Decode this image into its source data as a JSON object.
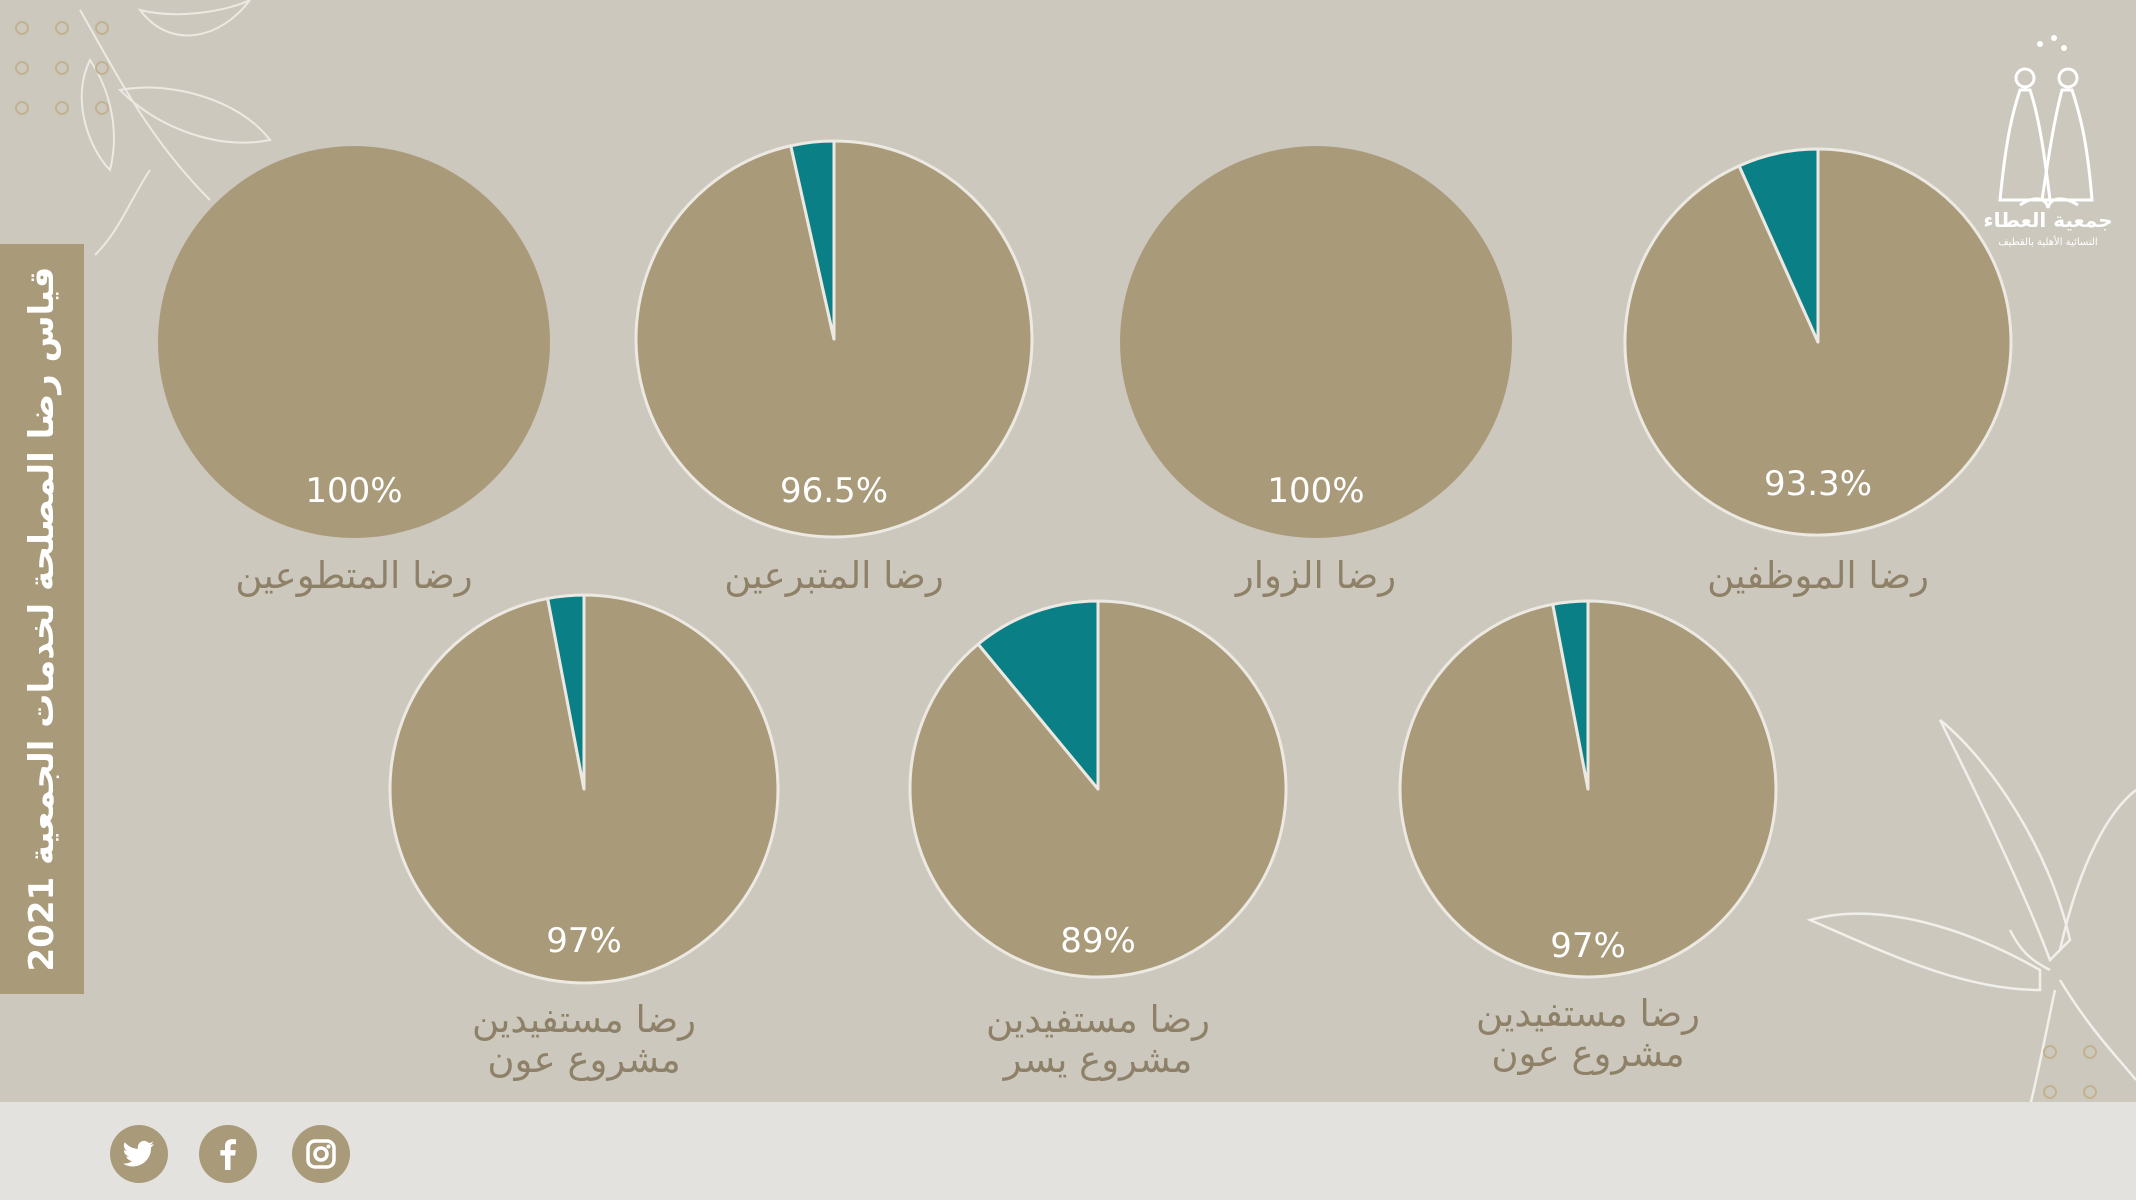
{
  "side_title": "قياس رضا المصلحة لخدمات الجمعية 2021",
  "logo": {
    "name": "جمعية العطاء",
    "tagline": "النسائية الأهلية بالقطيف"
  },
  "colors": {
    "background": "#cdc8be",
    "main_slice": "#a99a7a",
    "minor_slice": "#0b7f86",
    "label": "#8e8167",
    "footer": "#e3e2df"
  },
  "social": [
    "twitter-icon",
    "facebook-icon",
    "instagram-icon"
  ],
  "chart_data": [
    {
      "type": "pie",
      "label": [
        "رضا الموظفين"
      ],
      "satisfied": 93.3,
      "value_label": "93.3%"
    },
    {
      "type": "pie",
      "label": [
        "رضا الزوار"
      ],
      "satisfied": 100,
      "value_label": "100%"
    },
    {
      "type": "pie",
      "label": [
        "رضا المتبرعين"
      ],
      "satisfied": 96.5,
      "value_label": "96.5%"
    },
    {
      "type": "pie",
      "label": [
        "رضا المتطوعين"
      ],
      "satisfied": 100,
      "value_label": "100%"
    },
    {
      "type": "pie",
      "label": [
        "رضا مستفيدين",
        "مشروع عون"
      ],
      "satisfied": 97,
      "value_label": "97%"
    },
    {
      "type": "pie",
      "label": [
        "رضا مستفيدين",
        "مشروع يسر"
      ],
      "satisfied": 89,
      "value_label": "89%"
    },
    {
      "type": "pie",
      "label": [
        "رضا مستفيدين",
        "مشروع عون"
      ],
      "satisfied": 97,
      "value_label": "97%"
    }
  ]
}
